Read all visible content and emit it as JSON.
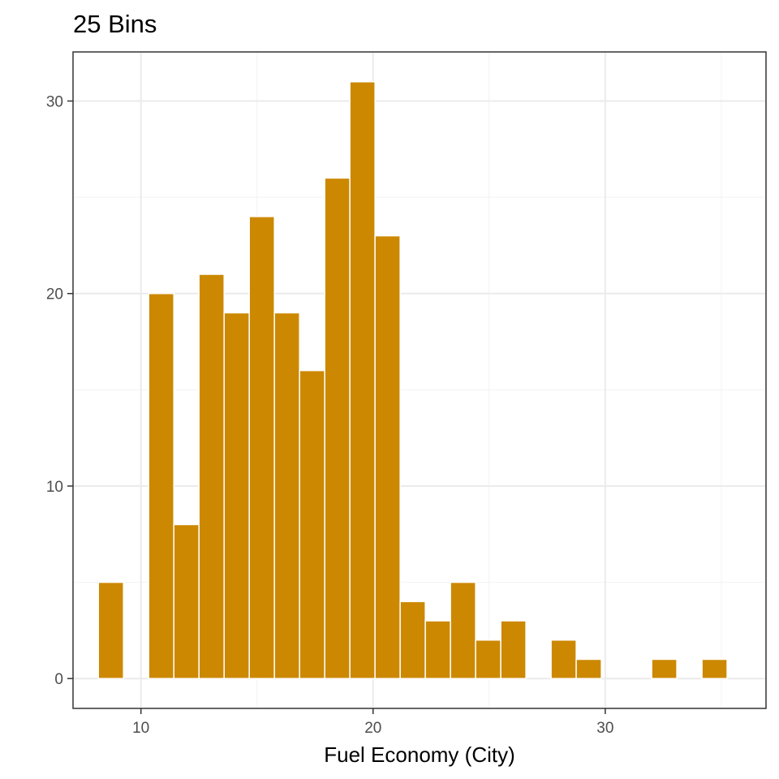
{
  "chart_data": {
    "type": "bar",
    "title": "25 Bins",
    "xlabel": "Fuel Economy (City)",
    "ylabel": "",
    "xlim": [
      7.075,
      36.925
    ],
    "ylim": [
      -1.55,
      32.55
    ],
    "x_ticks": [
      10,
      20,
      30
    ],
    "y_ticks": [
      0,
      10,
      20,
      30
    ],
    "grid": true,
    "bar_color": "#CC8800",
    "bin_width": 1.0833,
    "bin_centers": [
      8.7083,
      9.7917,
      10.875,
      11.9583,
      13.0417,
      14.125,
      15.2083,
      16.2917,
      17.375,
      18.4583,
      19.5417,
      20.625,
      21.7083,
      22.7917,
      23.875,
      24.9583,
      26.0417,
      27.125,
      28.2083,
      29.2917,
      30.375,
      31.4583,
      32.5417,
      33.625,
      34.7083
    ],
    "values": [
      5,
      0,
      20,
      8,
      21,
      19,
      24,
      19,
      16,
      26,
      31,
      23,
      4,
      3,
      5,
      2,
      3,
      0,
      2,
      1,
      0,
      0,
      1,
      0,
      1
    ]
  }
}
